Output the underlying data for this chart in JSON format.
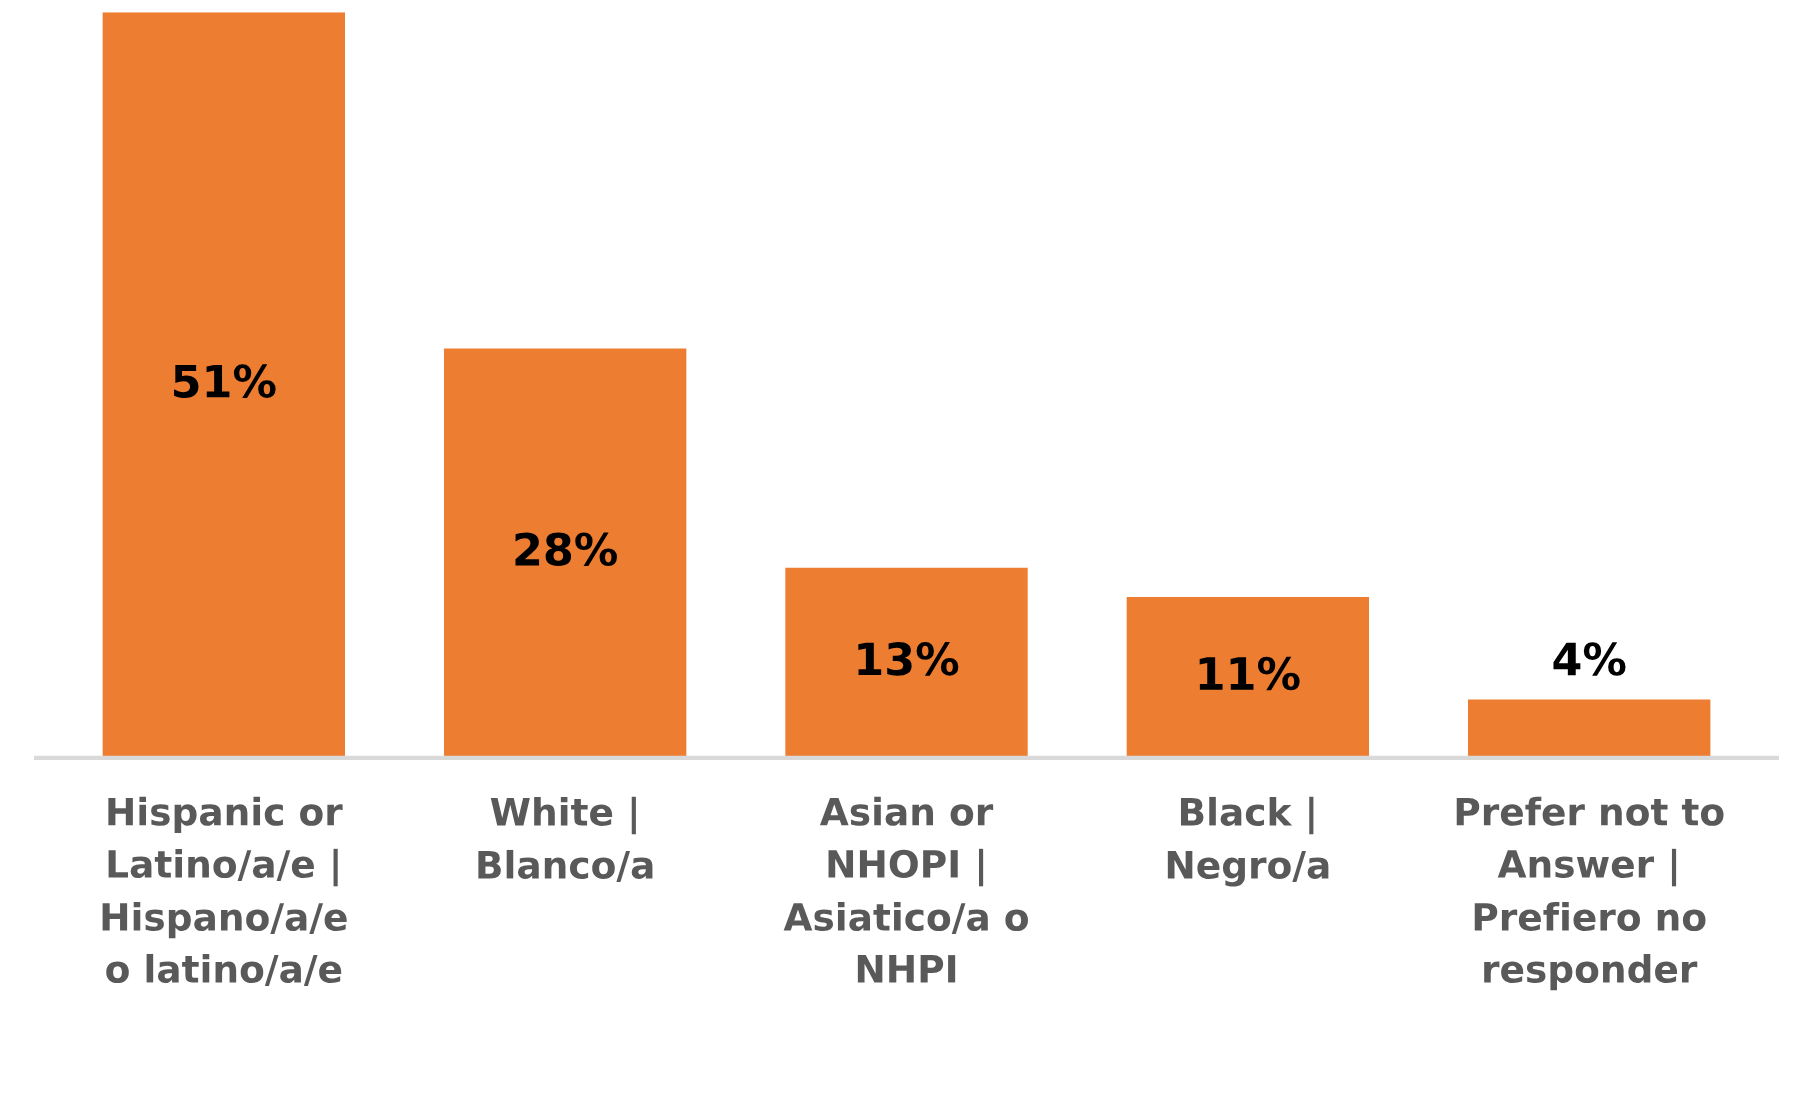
{
  "chart_data": {
    "type": "bar",
    "categories": [
      "Hispanic or\nLatino/a/e |\nHispano/a/e\no latino/a/e",
      "White |\nBlanco/a",
      "Asian or\nNHOPI |\nAsiatico/a o\nNHPI",
      "Black |\nNegro/a",
      "Prefer not to\nAnswer |\nPrefiero no\nresponder"
    ],
    "values": [
      51,
      28,
      13,
      11,
      4
    ],
    "value_labels": [
      "51%",
      "28%",
      "13%",
      "11%",
      "4%"
    ],
    "color": "#ed7d31",
    "ylim": [
      0,
      51
    ],
    "tick_labels": "x",
    "grid": false,
    "legend": false
  }
}
